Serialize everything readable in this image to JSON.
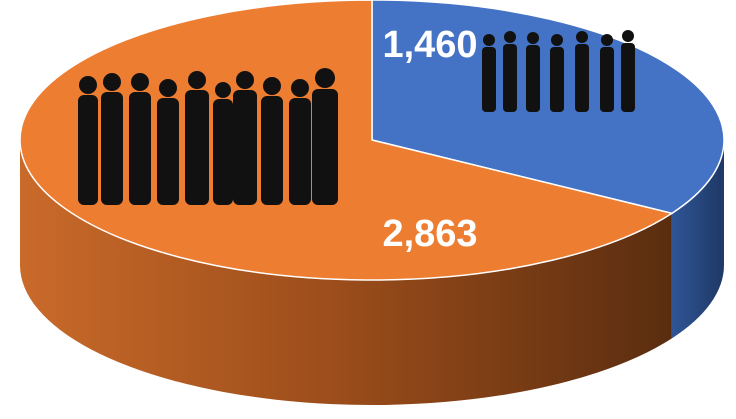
{
  "chart_data": {
    "type": "pie",
    "values": [
      1460,
      2863
    ],
    "value_labels": [
      "1,460",
      "2,863"
    ],
    "colors": [
      "#4472c4",
      "#ed7d31"
    ]
  }
}
